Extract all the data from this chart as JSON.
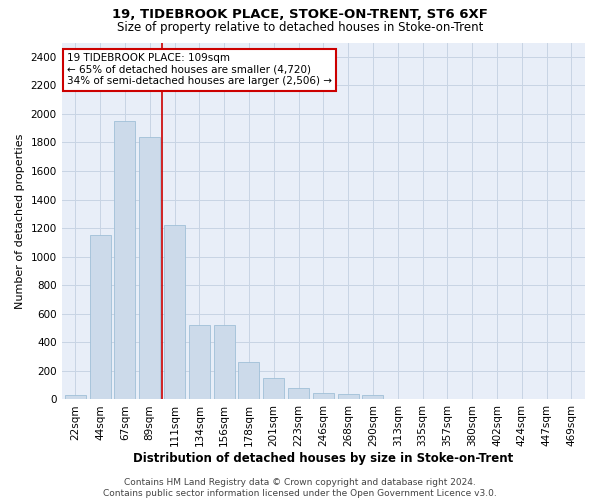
{
  "title1": "19, TIDEBROOK PLACE, STOKE-ON-TRENT, ST6 6XF",
  "title2": "Size of property relative to detached houses in Stoke-on-Trent",
  "xlabel": "Distribution of detached houses by size in Stoke-on-Trent",
  "ylabel": "Number of detached properties",
  "footer1": "Contains HM Land Registry data © Crown copyright and database right 2024.",
  "footer2": "Contains public sector information licensed under the Open Government Licence v3.0.",
  "categories": [
    "22sqm",
    "44sqm",
    "67sqm",
    "89sqm",
    "111sqm",
    "134sqm",
    "156sqm",
    "178sqm",
    "201sqm",
    "223sqm",
    "246sqm",
    "268sqm",
    "290sqm",
    "313sqm",
    "335sqm",
    "357sqm",
    "380sqm",
    "402sqm",
    "424sqm",
    "447sqm",
    "469sqm"
  ],
  "values": [
    30,
    1150,
    1950,
    1840,
    1220,
    520,
    520,
    265,
    150,
    80,
    45,
    35,
    30,
    5,
    5,
    3,
    2,
    2,
    1,
    1,
    5
  ],
  "bar_color": "#ccdaea",
  "bar_edge_color": "#a0c0d8",
  "highlight_line_color": "#cc0000",
  "highlight_bar_index": 4,
  "annotation_text": "19 TIDEBROOK PLACE: 109sqm\n← 65% of detached houses are smaller (4,720)\n34% of semi-detached houses are larger (2,506) →",
  "annotation_box_color": "#ffffff",
  "annotation_box_edge_color": "#cc0000",
  "ylim": [
    0,
    2500
  ],
  "yticks": [
    0,
    200,
    400,
    600,
    800,
    1000,
    1200,
    1400,
    1600,
    1800,
    2000,
    2200,
    2400
  ],
  "grid_color": "#c8d4e4",
  "bg_color": "#e8eef8",
  "title1_fontsize": 9.5,
  "title2_fontsize": 8.5,
  "xlabel_fontsize": 8.5,
  "ylabel_fontsize": 8,
  "tick_fontsize": 7.5,
  "annotation_fontsize": 7.5,
  "footer_fontsize": 6.5
}
